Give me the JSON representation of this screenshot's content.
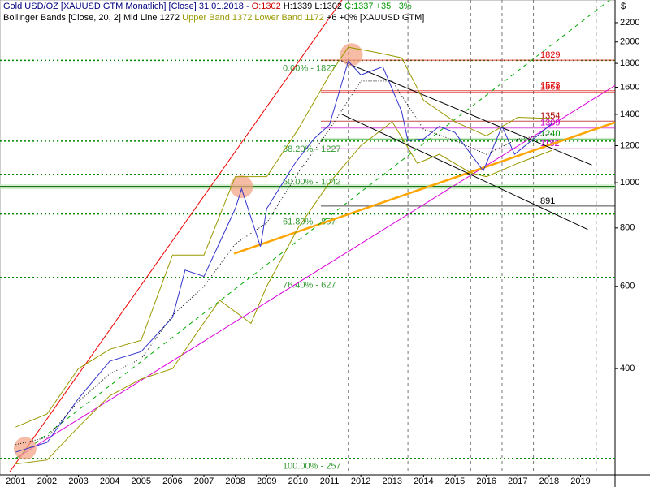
{
  "chart_data": {
    "type": "line",
    "log_y": true,
    "xlim": [
      2000.5,
      2020.1
    ],
    "ylim": [
      237,
      2460
    ],
    "xticks": [
      {
        "value": 2001,
        "label": "2001"
      },
      {
        "value": 2002,
        "label": "2002"
      },
      {
        "value": 2003,
        "label": "2003"
      },
      {
        "value": 2004,
        "label": "2004"
      },
      {
        "value": 2005,
        "label": "2005"
      },
      {
        "value": 2006,
        "label": "2006"
      },
      {
        "value": 2007,
        "label": "2007"
      },
      {
        "value": 2008,
        "label": "2008"
      },
      {
        "value": 2009,
        "label": "2009"
      },
      {
        "value": 2010,
        "label": "2010"
      },
      {
        "value": 2011,
        "label": "2011"
      },
      {
        "value": 2012,
        "label": "2012"
      },
      {
        "value": 2013,
        "label": "2013"
      },
      {
        "value": 2014,
        "label": "2014"
      },
      {
        "value": 2015,
        "label": "2015"
      },
      {
        "value": 2016,
        "label": "2016"
      },
      {
        "value": 2017,
        "label": "2017"
      },
      {
        "value": 2018,
        "label": "2018"
      },
      {
        "value": 2019,
        "label": "2019"
      }
    ],
    "yticks": [
      400,
      600,
      800,
      1000,
      1200,
      1400,
      1600,
      1800,
      2000,
      2200
    ],
    "y_unit": "$",
    "legend": [
      [
        {
          "text": "Gold USD/OZ [XAUUSD GTM  Monatlich] [Close] 31.01.2018 - ",
          "color": "#000080"
        },
        {
          "text": "O:1302",
          "color": "#cc0000"
        },
        {
          "text": " H:1339 L:1302 ",
          "color": "#000000"
        },
        {
          "text": "C:1337 +35 +3%",
          "color": "#009900"
        }
      ],
      [
        {
          "text": "Bollinger Bands [Close, 20, 2] Mid Line 1272 ",
          "color": "#000000"
        },
        {
          "text": "Upper Band 1372 Lower Band 1172",
          "color": "#999900"
        },
        {
          "text": " +6 +0% [XAUUSD GTM]",
          "color": "#000000"
        }
      ]
    ],
    "series": [
      {
        "name": "Gold USD/OZ",
        "color": "#3333cc",
        "x": [
          2001.0,
          2002.0,
          2003.0,
          2004.0,
          2005.0,
          2006.0,
          2006.4,
          2007.0,
          2008.0,
          2008.2,
          2008.8,
          2009.0,
          2009.9,
          2010.5,
          2011.0,
          2011.6,
          2012.0,
          2012.7,
          2013.3,
          2013.5,
          2014.0,
          2014.5,
          2015.0,
          2015.9,
          2016.5,
          2016.9,
          2017.5,
          2018.08
        ],
        "values": [
          265,
          278,
          345,
          415,
          435,
          515,
          650,
          630,
          880,
          970,
          730,
          880,
          1100,
          1240,
          1330,
          1820,
          1700,
          1770,
          1420,
          1230,
          1240,
          1320,
          1280,
          1060,
          1320,
          1150,
          1240,
          1337
        ]
      },
      {
        "name": "Upper Band",
        "color": "#999900",
        "x": [
          2001.0,
          2002.0,
          2003.0,
          2004.0,
          2005.0,
          2006.0,
          2007.0,
          2008.0,
          2009.0,
          2010.0,
          2011.0,
          2011.6,
          2012.5,
          2013.3,
          2014.0,
          2015.0,
          2016.0,
          2017.0,
          2018.08
        ],
        "values": [
          300,
          320,
          400,
          440,
          460,
          700,
          700,
          1030,
          1030,
          1300,
          1700,
          1950,
          1900,
          1850,
          1500,
          1350,
          1260,
          1380,
          1372
        ]
      },
      {
        "name": "Lower Band",
        "color": "#999900",
        "x": [
          2001.0,
          2002.0,
          2003.0,
          2004.0,
          2005.0,
          2006.0,
          2006.8,
          2007.5,
          2008.5,
          2009.0,
          2010.0,
          2011.0,
          2012.0,
          2013.0,
          2013.8,
          2014.5,
          2015.5,
          2016.0,
          2017.0,
          2018.08
        ],
        "values": [
          250,
          255,
          300,
          350,
          380,
          400,
          480,
          560,
          500,
          600,
          800,
          1000,
          1200,
          1350,
          1100,
          1150,
          1050,
          1030,
          1100,
          1172
        ]
      },
      {
        "name": "Mid Line",
        "color": "#000000",
        "x": [
          2001.0,
          2002.0,
          2003.0,
          2004.0,
          2005.0,
          2006.0,
          2007.0,
          2008.0,
          2009.0,
          2010.0,
          2011.0,
          2012.0,
          2013.0,
          2014.0,
          2015.0,
          2016.0,
          2017.0,
          2018.08
        ],
        "values": [
          275,
          285,
          340,
          390,
          420,
          520,
          600,
          740,
          820,
          1050,
          1300,
          1650,
          1650,
          1300,
          1230,
          1150,
          1240,
          1272
        ]
      }
    ],
    "fib_levels": [
      {
        "value": 1827,
        "label": "0.00% - 1827"
      },
      {
        "value": 1227,
        "label": "38.20% - 1227"
      },
      {
        "value": 1042,
        "label": "50.00% - 1042"
      },
      {
        "value": 857,
        "label": "61.80% - 857"
      },
      {
        "value": 627,
        "label": "76.40% - 627"
      },
      {
        "value": 257,
        "label": "100.00% - 257"
      }
    ],
    "levels": [
      {
        "value": 1829,
        "label": "1829",
        "color": "#dd0000"
      },
      {
        "value": 1573,
        "label": "1573",
        "color": "#dd0000"
      },
      {
        "value": 1561,
        "label": "1561",
        "color": "#dd0000"
      },
      {
        "value": 1354,
        "label": "1354",
        "color": "#aa0000"
      },
      {
        "value": 1309,
        "label": "1309",
        "color": "#cc00cc"
      },
      {
        "value": 1240,
        "label": "1240",
        "color": "#009900"
      },
      {
        "value": 1182,
        "label": "1182",
        "color": "#cc00cc"
      },
      {
        "value": 891,
        "label": "891",
        "color": "#000000"
      }
    ],
    "support": {
      "value": 980,
      "color": "#006600"
    },
    "trendlines": [
      {
        "color": "#ee0000",
        "x": [
          2000.8,
          2011.4
        ],
        "values": [
          240,
          2460
        ]
      },
      {
        "color": "#dd00dd",
        "x": [
          2001.0,
          2020.1
        ],
        "values": [
          257,
          1614
        ]
      },
      {
        "color": "#ffa500",
        "x": [
          2007.96,
          2020.1
        ],
        "values": [
          705,
          1346
        ]
      },
      {
        "color": "#00aa00",
        "x": [
          2001.0,
          2019.93
        ],
        "values": [
          257,
          2460
        ]
      },
      {
        "color": "#000000",
        "x": [
          2011.38,
          2019.36
        ],
        "values": [
          1823,
          1091
        ]
      },
      {
        "color": "#000000",
        "x": [
          2011.38,
          2019.23
        ],
        "values": [
          1402,
          794
        ]
      }
    ],
    "highlights": {
      "x": [
        2001.3,
        2008.2,
        2011.7
      ],
      "values": [
        270,
        980,
        1880
      ]
    },
    "vlines": [
      2011.6,
      2013.5,
      2015.5,
      2016.5,
      2017.5,
      2019.5
    ]
  }
}
